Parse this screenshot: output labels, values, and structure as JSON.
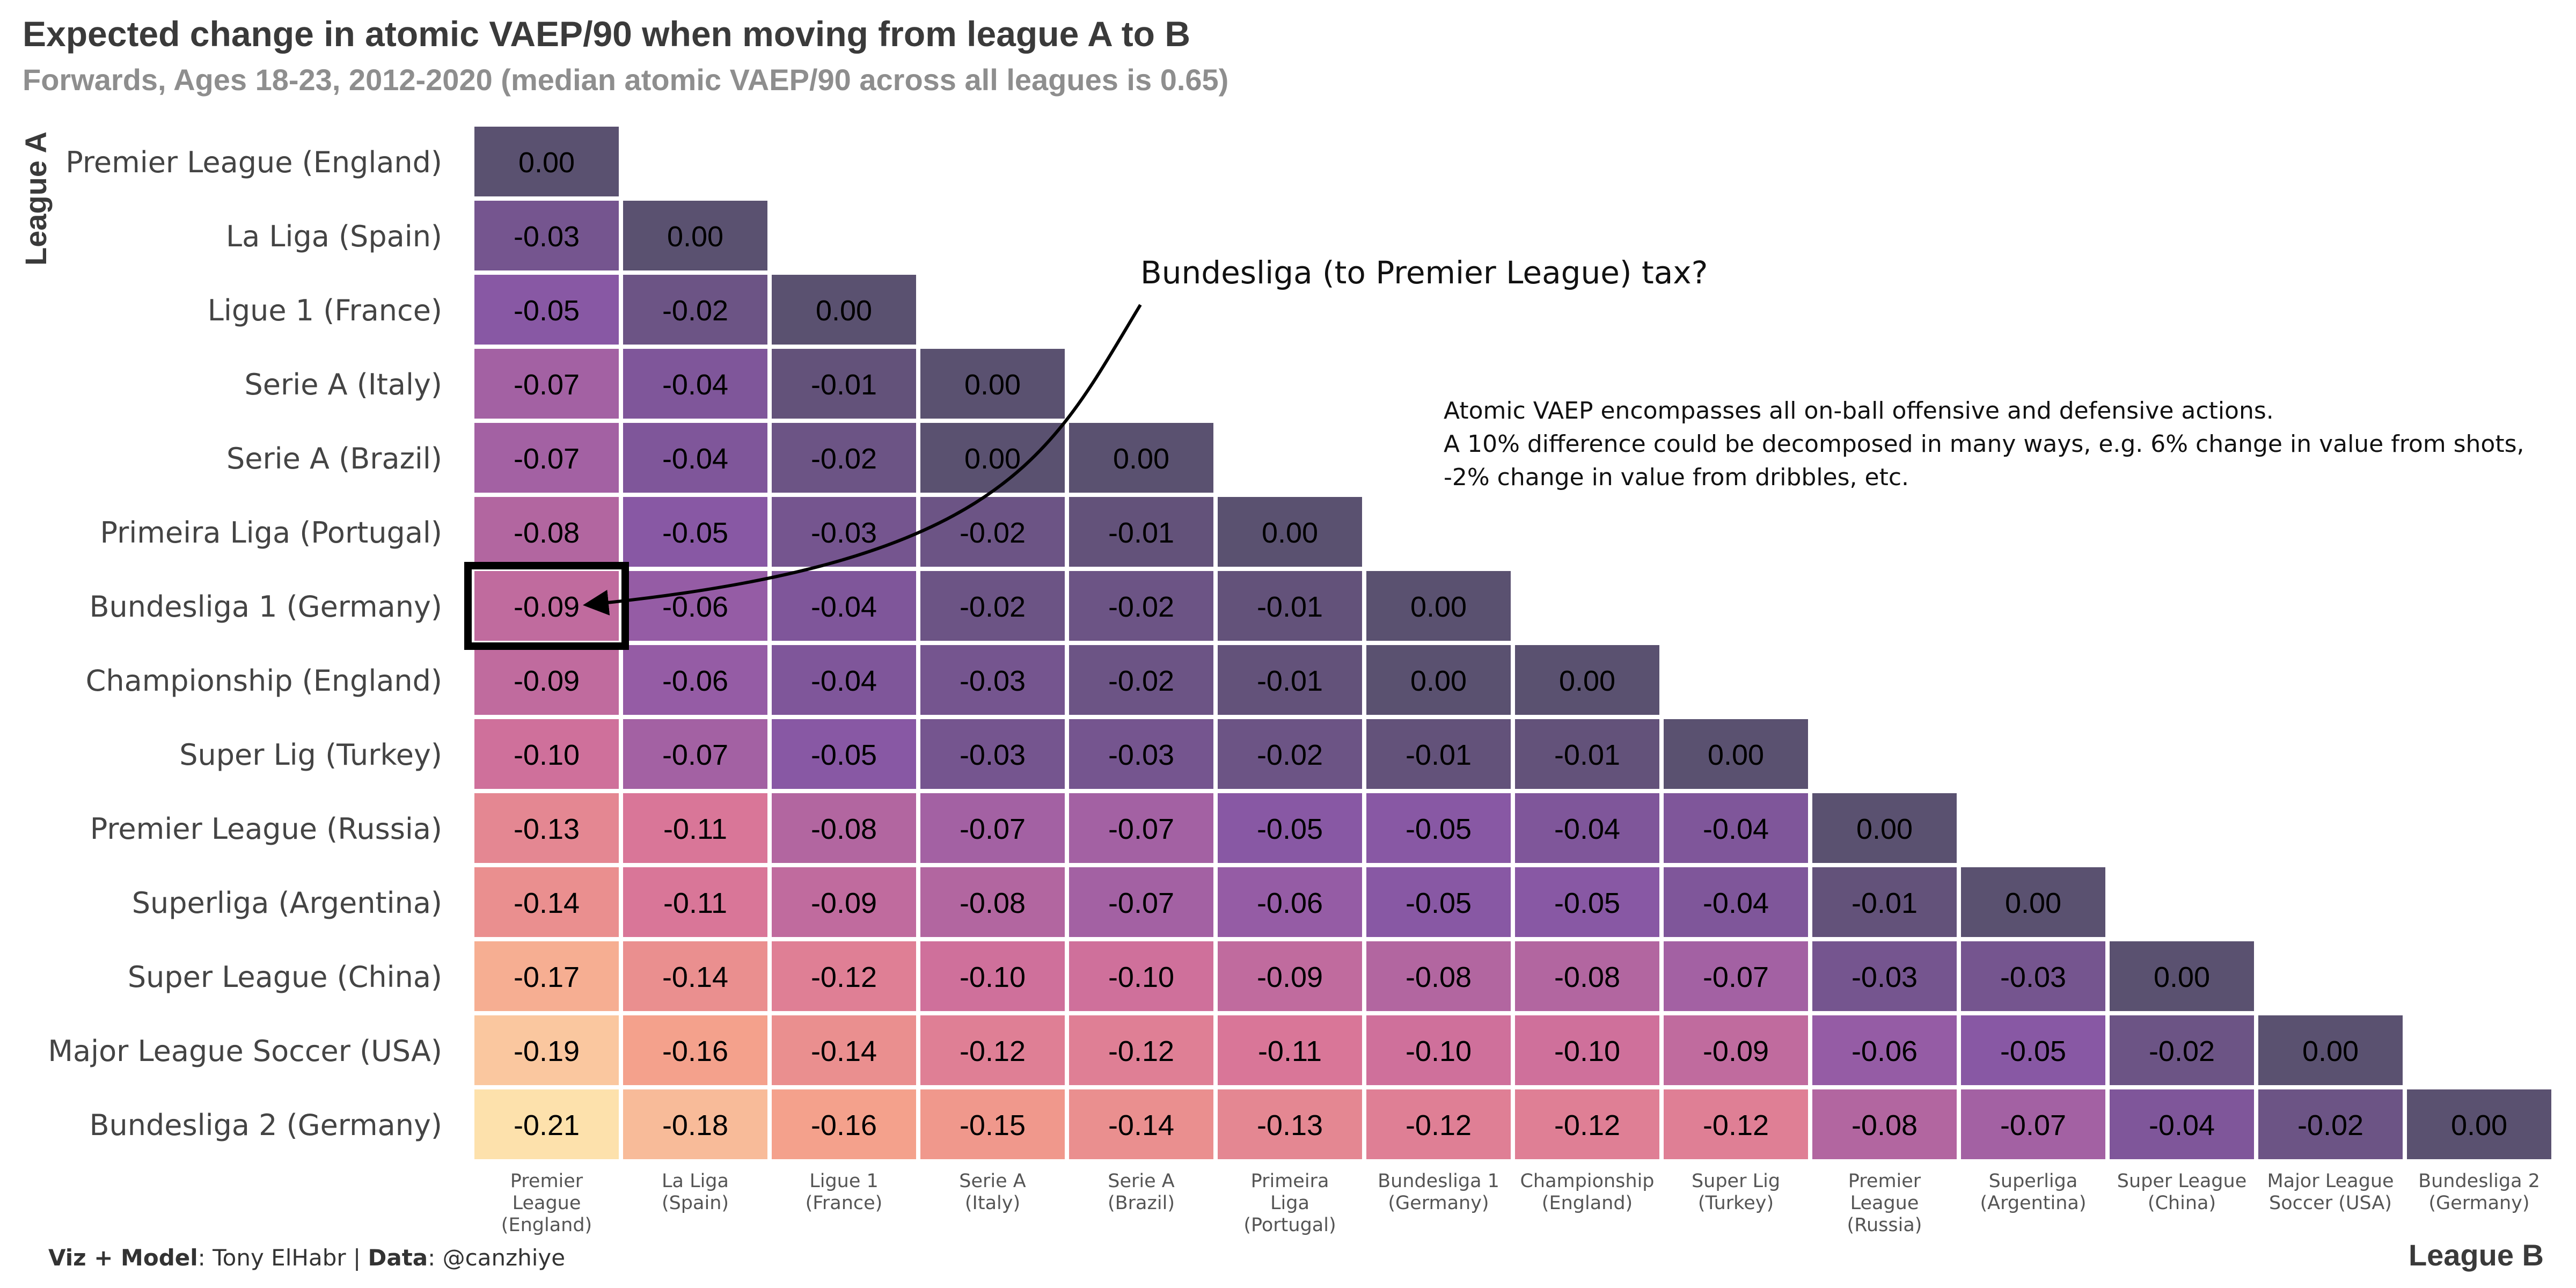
{
  "chart_data": {
    "type": "heatmap",
    "title": "Expected change in atomic VAEP/90 when moving from league A to B",
    "subtitle": "Forwards, Ages 18-23, 2012-2020 (median atomic VAEP/90 across all leagues is 0.65)",
    "ylabel": "League A",
    "xlabel": "League B",
    "row_labels": [
      "Premier League (England)",
      "La Liga (Spain)",
      "Ligue 1 (France)",
      "Serie A (Italy)",
      "Serie A (Brazil)",
      "Primeira Liga (Portugal)",
      "Bundesliga 1 (Germany)",
      "Championship (England)",
      "Super Lig (Turkey)",
      "Premier League (Russia)",
      "Superliga (Argentina)",
      "Super League (China)",
      "Major League Soccer (USA)",
      "Bundesliga 2 (Germany)"
    ],
    "col_labels": [
      [
        "Premier",
        "League",
        "(England)"
      ],
      [
        "La Liga",
        "(Spain)"
      ],
      [
        "Ligue 1",
        "(France)"
      ],
      [
        "Serie A",
        "(Italy)"
      ],
      [
        "Serie A",
        "(Brazil)"
      ],
      [
        "Primeira",
        "Liga",
        "(Portugal)"
      ],
      [
        "Bundesliga 1",
        "(Germany)"
      ],
      [
        "Championship",
        "(England)"
      ],
      [
        "Super Lig",
        "(Turkey)"
      ],
      [
        "Premier",
        "League",
        "(Russia)"
      ],
      [
        "Superliga",
        "(Argentina)"
      ],
      [
        "Super League",
        "(China)"
      ],
      [
        "Major League",
        "Soccer (USA)"
      ],
      [
        "Bundesliga 2",
        "(Germany)"
      ]
    ],
    "values": [
      [
        "0.00"
      ],
      [
        "-0.03",
        "0.00"
      ],
      [
        "-0.05",
        "-0.02",
        "0.00"
      ],
      [
        "-0.07",
        "-0.04",
        "-0.01",
        "0.00"
      ],
      [
        "-0.07",
        "-0.04",
        "-0.02",
        "0.00",
        "0.00"
      ],
      [
        "-0.08",
        "-0.05",
        "-0.03",
        "-0.02",
        "-0.01",
        "0.00"
      ],
      [
        "-0.09",
        "-0.06",
        "-0.04",
        "-0.02",
        "-0.02",
        "-0.01",
        "0.00"
      ],
      [
        "-0.09",
        "-0.06",
        "-0.04",
        "-0.03",
        "-0.02",
        "-0.01",
        "0.00",
        "0.00"
      ],
      [
        "-0.10",
        "-0.07",
        "-0.05",
        "-0.03",
        "-0.03",
        "-0.02",
        "-0.01",
        "-0.01",
        "0.00"
      ],
      [
        "-0.13",
        "-0.11",
        "-0.08",
        "-0.07",
        "-0.07",
        "-0.05",
        "-0.05",
        "-0.04",
        "-0.04",
        "0.00"
      ],
      [
        "-0.14",
        "-0.11",
        "-0.09",
        "-0.08",
        "-0.07",
        "-0.06",
        "-0.05",
        "-0.05",
        "-0.04",
        "-0.01",
        "0.00"
      ],
      [
        "-0.17",
        "-0.14",
        "-0.12",
        "-0.10",
        "-0.10",
        "-0.09",
        "-0.08",
        "-0.08",
        "-0.07",
        "-0.03",
        "-0.03",
        "0.00"
      ],
      [
        "-0.19",
        "-0.16",
        "-0.14",
        "-0.12",
        "-0.12",
        "-0.11",
        "-0.10",
        "-0.10",
        "-0.09",
        "-0.06",
        "-0.05",
        "-0.02",
        "0.00"
      ],
      [
        "-0.21",
        "-0.18",
        "-0.16",
        "-0.15",
        "-0.14",
        "-0.13",
        "-0.12",
        "-0.12",
        "-0.12",
        "-0.08",
        "-0.07",
        "-0.04",
        "-0.02",
        "0.00"
      ]
    ],
    "highlight": {
      "row": 6,
      "col": 0
    },
    "color_scale": [
      "#5a5170",
      "#8a58a7",
      "#d6729a",
      "#f49e8a",
      "#fde1ac"
    ],
    "annotations": {
      "arrow_text": "Bundesliga (to Premier League) tax?",
      "note_lines": [
        "Atomic VAEP encompasses all on-ball offensive and defensive actions.",
        "A 10% difference could be decomposed in many ways, e.g. 6% change in value from shots,",
        "-2% change in value from dribbles, etc."
      ]
    },
    "grid": false,
    "legend": "none"
  },
  "caption": {
    "viz_label": "Viz + Model",
    "viz_value": ": Tony ElHabr | ",
    "data_label": "Data",
    "data_value": ": @canzhiye"
  }
}
